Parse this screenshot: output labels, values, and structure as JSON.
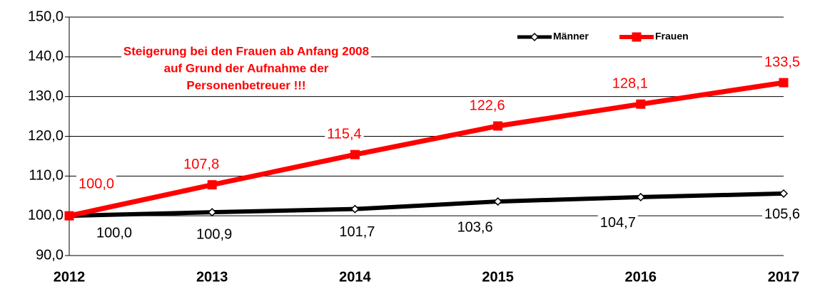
{
  "chart_data": {
    "type": "line",
    "categories": [
      "2012",
      "2013",
      "2014",
      "2015",
      "2016",
      "2017"
    ],
    "series": [
      {
        "name": "Männer",
        "color": "#000000",
        "values": [
          100.0,
          100.9,
          101.7,
          103.6,
          104.7,
          105.6
        ],
        "value_labels": [
          "100,0",
          "100,9",
          "101,7",
          "103,6",
          "104,7",
          "105,6"
        ]
      },
      {
        "name": "Frauen",
        "color": "#ff0000",
        "values": [
          100.0,
          107.8,
          115.4,
          122.6,
          128.1,
          133.5
        ],
        "value_labels": [
          "100,0",
          "107,8",
          "115,4",
          "122,6",
          "128,1",
          "133,5"
        ]
      }
    ],
    "ylim": [
      90,
      150
    ],
    "yticks": [
      {
        "value": 90,
        "label": "90,0"
      },
      {
        "value": 100,
        "label": "100,0"
      },
      {
        "value": 110,
        "label": "110,0"
      },
      {
        "value": 120,
        "label": "120,0"
      },
      {
        "value": 130,
        "label": "130,0"
      },
      {
        "value": 140,
        "label": "140,0"
      },
      {
        "value": 150,
        "label": "150,0"
      }
    ],
    "grid": true,
    "legend": "top-right",
    "annotations": [
      "Steigerung bei den Frauen ab Anfang 2008",
      "auf Grund der Aufnahme der",
      "Personenbetreuer !!!"
    ]
  }
}
